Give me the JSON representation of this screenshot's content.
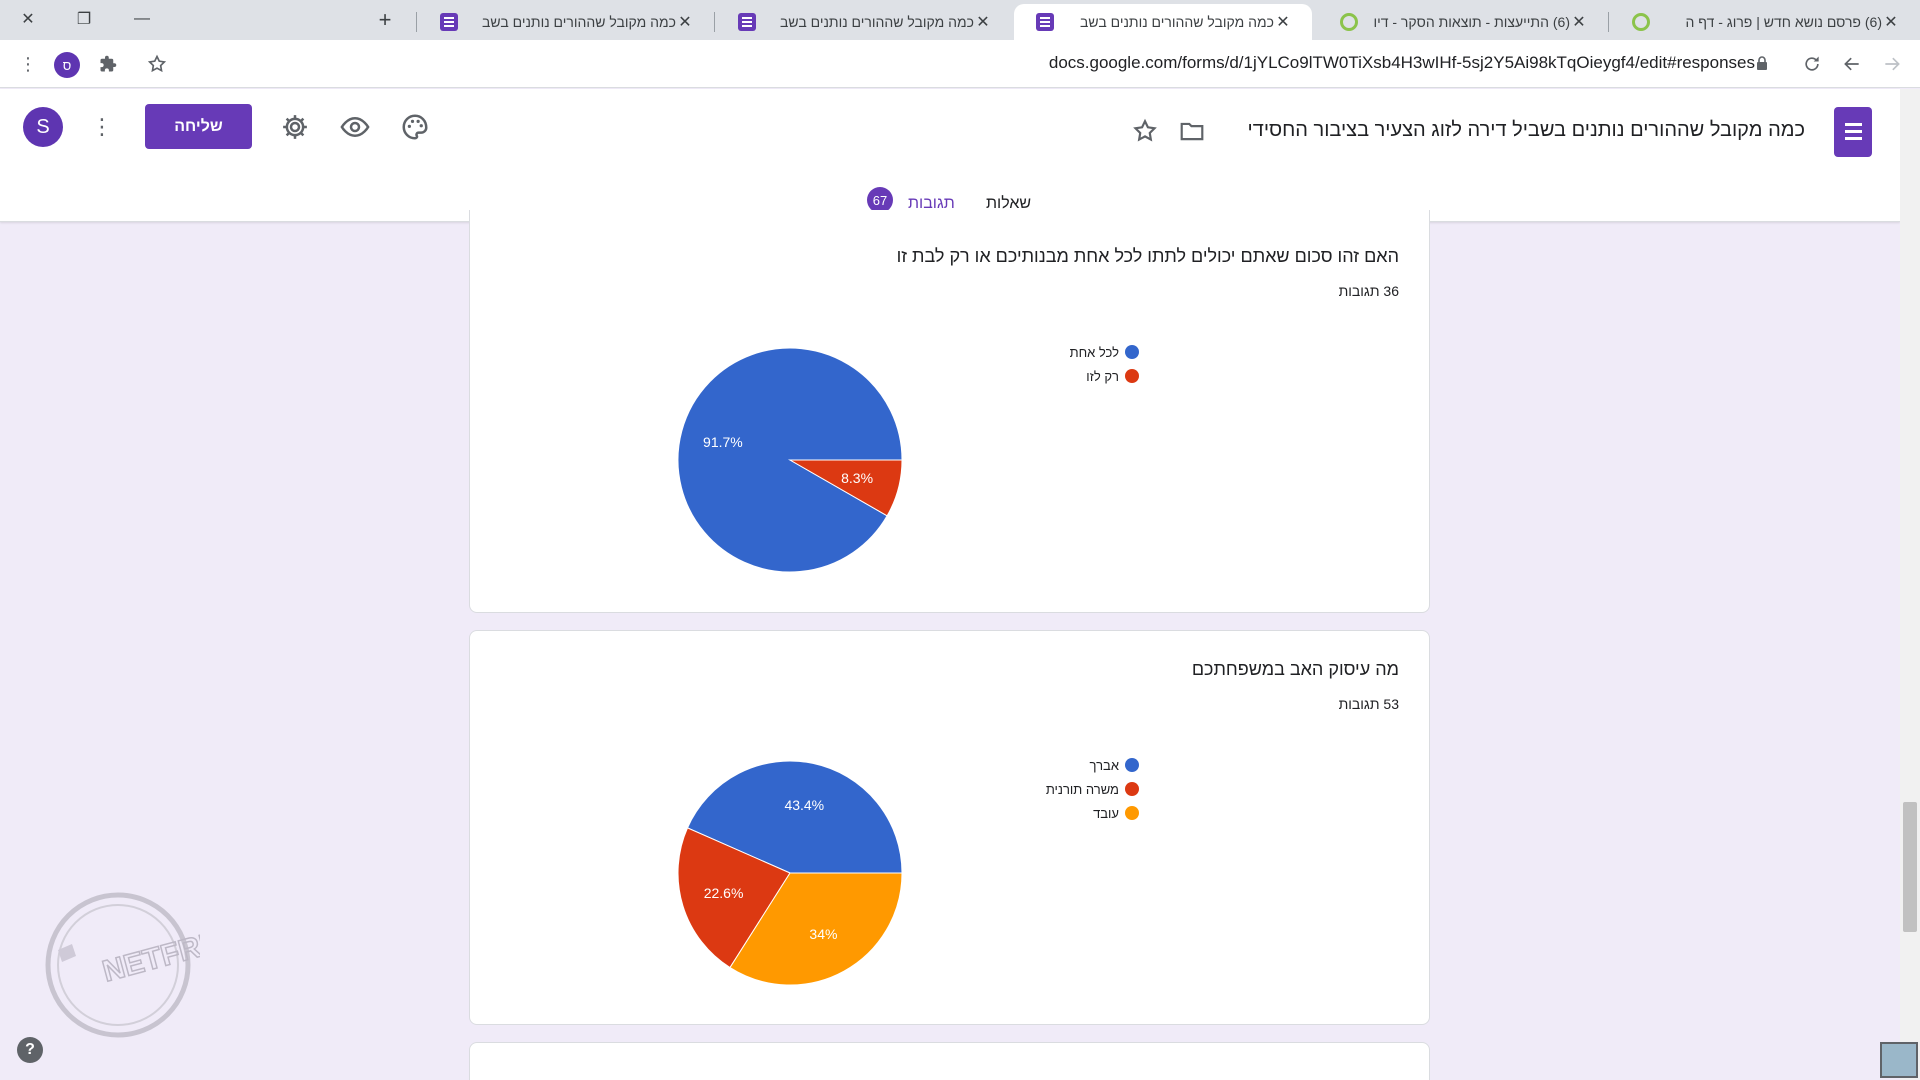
{
  "browser": {
    "tabs": [
      {
        "title": "(6) פרסם נושא חדש | פרוג - דף ה",
        "icon": "prog-icon"
      },
      {
        "title": "(6) התייעצות - תוצאות הסקר - דיו",
        "icon": "prog-icon"
      },
      {
        "title": "כמה מקובל שההורים נותנים בשב",
        "icon": "forms-icon",
        "active": true
      },
      {
        "title": "כמה מקובל שההורים נותנים בשב",
        "icon": "forms-icon"
      },
      {
        "title": "כמה מקובל שההורים נותנים בשב",
        "icon": "forms-icon"
      }
    ],
    "url": "docs.google.com/forms/d/1jYLCo9lTW0TiXsb4H3wIHf-5sj2Y5Ai98kTqOieygf4/edit#responses",
    "profile_initial": "ס"
  },
  "form": {
    "title": "כמה מקובל שההורים נותנים בשביל דירה לזוג הצעיר בציבור החסידי",
    "send_label": "שליחה",
    "avatar_initial": "S",
    "tabs": {
      "questions": "שאלות",
      "responses": "תגובות",
      "responses_count": "67"
    }
  },
  "questions": [
    {
      "title": "האם זהו סכום שאתם יכולים לתתו לכל אחת מבנותיכם או רק לבת זו",
      "response_count": "36 תגובות",
      "chart_data": {
        "type": "pie",
        "slices": [
          {
            "label": "לכל אחת",
            "value": 91.7,
            "color": "#3366cc"
          },
          {
            "label": "רק לזו",
            "value": 8.3,
            "color": "#dc3912"
          }
        ]
      }
    },
    {
      "title": "מה עיסוק האב במשפחתכם",
      "response_count": "53 תגובות",
      "chart_data": {
        "type": "pie",
        "slices": [
          {
            "label": "אברך",
            "value": 43.4,
            "color": "#3366cc"
          },
          {
            "label": "משרה תורנית",
            "value": 22.6,
            "color": "#dc3912"
          },
          {
            "label": "עובד",
            "value": 34,
            "color": "#ff9900"
          }
        ]
      }
    }
  ],
  "watermark_text": "NETFREE"
}
